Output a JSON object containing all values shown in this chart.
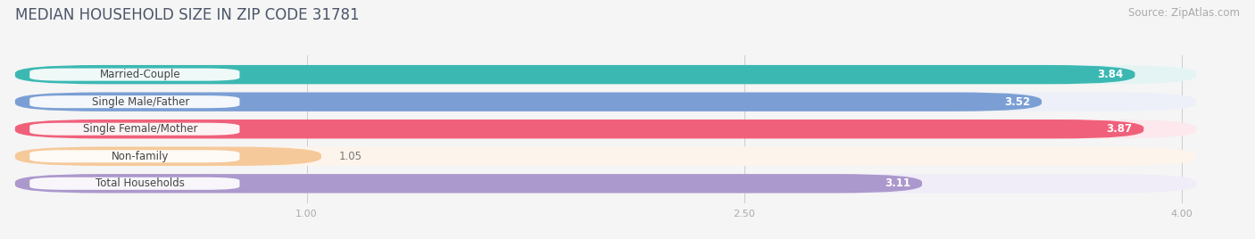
{
  "title": "MEDIAN HOUSEHOLD SIZE IN ZIP CODE 31781",
  "source": "Source: ZipAtlas.com",
  "categories": [
    "Married-Couple",
    "Single Male/Father",
    "Single Female/Mother",
    "Non-family",
    "Total Households"
  ],
  "values": [
    3.84,
    3.52,
    3.87,
    1.05,
    3.11
  ],
  "bar_colors": [
    "#3cb8b2",
    "#7b9fd4",
    "#f0607a",
    "#f5c99a",
    "#ab98cc"
  ],
  "bar_bg_colors": [
    "#e4f4f4",
    "#edf0f8",
    "#fce8ed",
    "#fdf4ec",
    "#f0ecf8"
  ],
  "value_label_colors": [
    "#ffffff",
    "#ffffff",
    "#ffffff",
    "#888888",
    "#ffffff"
  ],
  "xlim_min": 0,
  "xlim_max": 4.2,
  "bar_xlim_max": 4.05,
  "xticks": [
    1.0,
    2.5,
    4.0
  ],
  "xtick_labels": [
    "1.00",
    "2.50",
    "4.00"
  ],
  "title_fontsize": 12,
  "source_fontsize": 8.5,
  "bar_label_fontsize": 8.5,
  "category_label_fontsize": 8.5,
  "bar_height": 0.7,
  "bar_gap": 0.18,
  "background_color": "#f5f5f5"
}
